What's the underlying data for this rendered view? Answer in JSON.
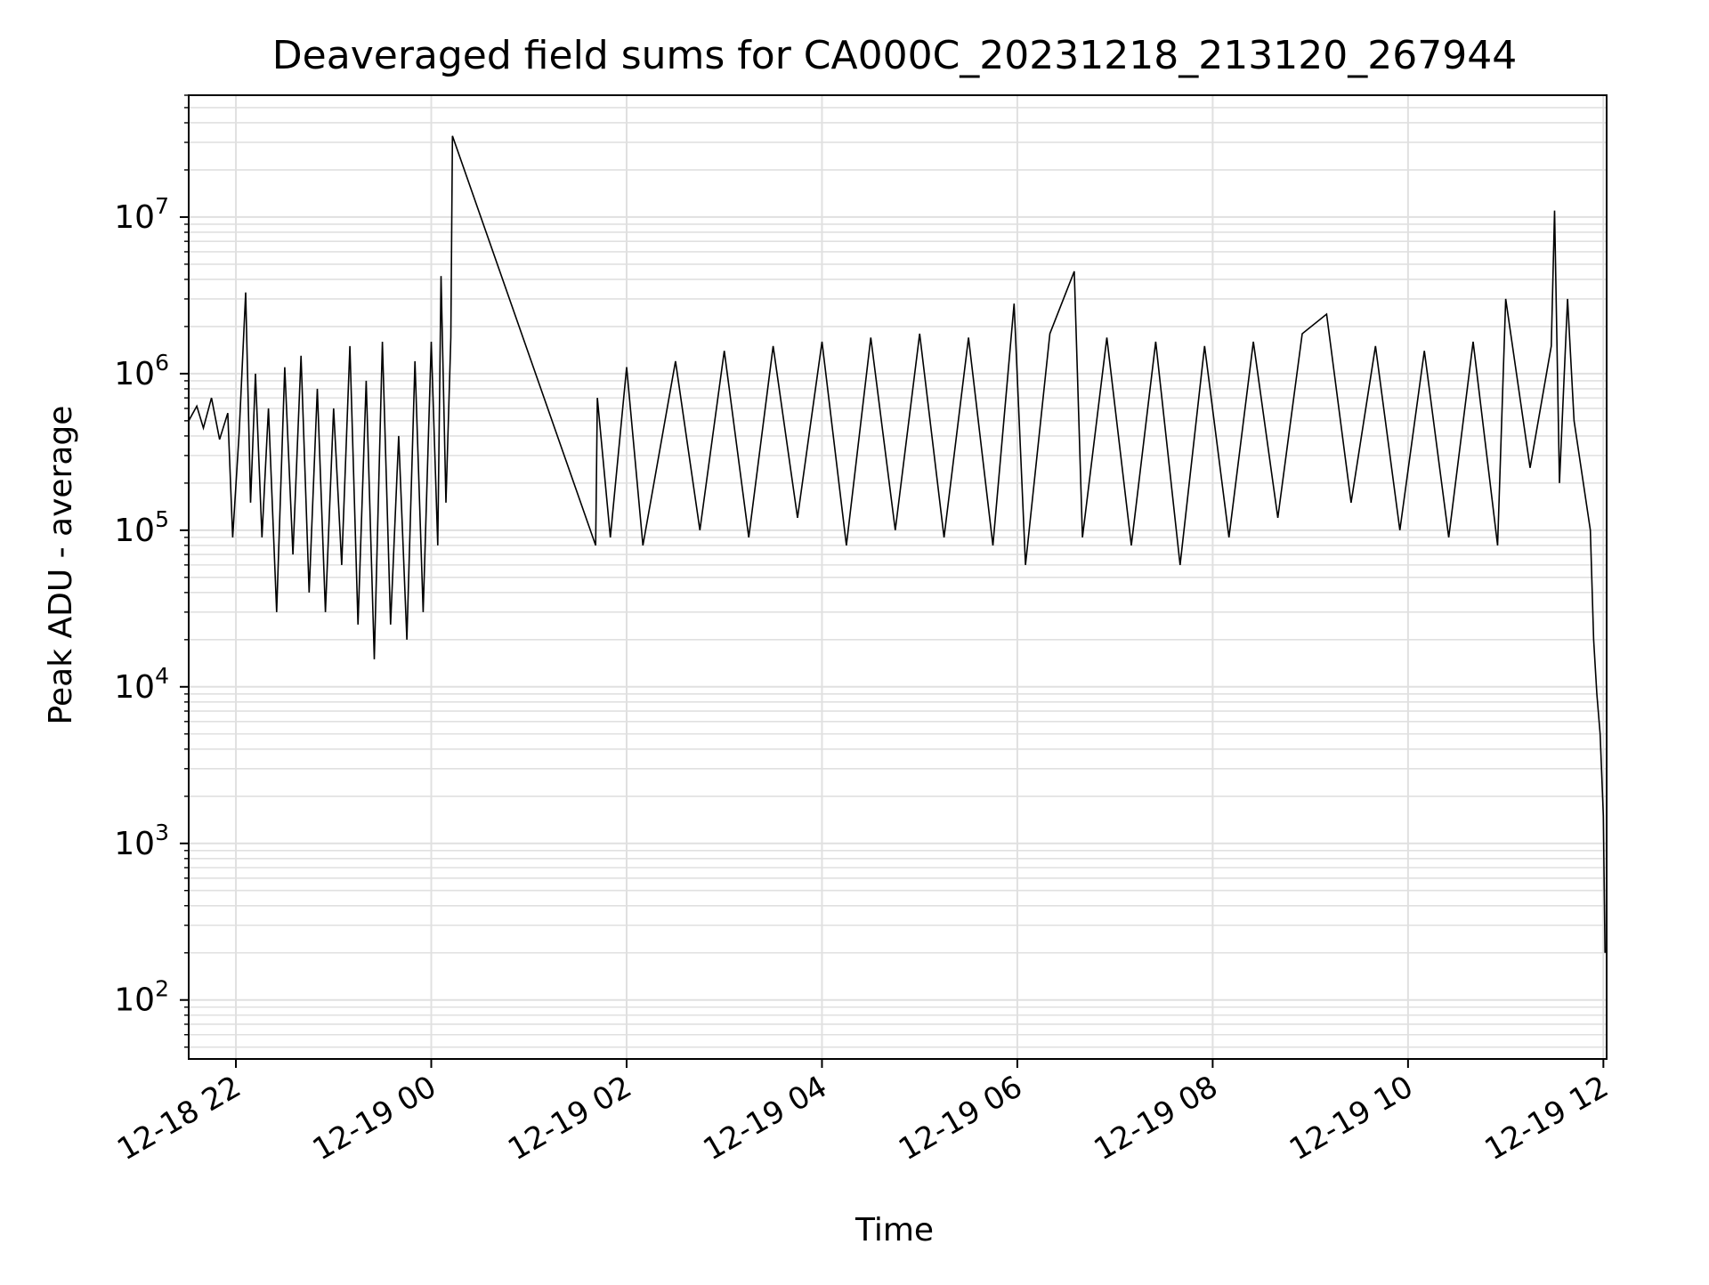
{
  "chart_data": {
    "type": "line",
    "title": "Deaveraged field sums for CA000C_20231218_213120_267944",
    "xlabel": "Time",
    "ylabel": "Peak ADU - average",
    "yscale": "log",
    "ylim": [
      42,
      60000000
    ],
    "xlim": [
      "2023-12-18 21:31",
      "2023-12-19 12:02"
    ],
    "x_ticks": [
      {
        "label": "12-18 22",
        "time": "2023-12-18 22:00"
      },
      {
        "label": "12-19 00",
        "time": "2023-12-19 00:00"
      },
      {
        "label": "12-19 02",
        "time": "2023-12-19 02:00"
      },
      {
        "label": "12-19 04",
        "time": "2023-12-19 04:00"
      },
      {
        "label": "12-19 06",
        "time": "2023-12-19 06:00"
      },
      {
        "label": "12-19 08",
        "time": "2023-12-19 08:00"
      },
      {
        "label": "12-19 10",
        "time": "2023-12-19 10:00"
      },
      {
        "label": "12-19 12",
        "time": "2023-12-19 12:00"
      }
    ],
    "y_ticks": [
      {
        "base": "10",
        "exp": "2",
        "value": 100
      },
      {
        "base": "10",
        "exp": "3",
        "value": 1000
      },
      {
        "base": "10",
        "exp": "4",
        "value": 10000
      },
      {
        "base": "10",
        "exp": "5",
        "value": 100000
      },
      {
        "base": "10",
        "exp": "6",
        "value": 1000000
      },
      {
        "base": "10",
        "exp": "7",
        "value": 10000000
      }
    ],
    "grid": "on (major and minor)",
    "line_color": "#000000",
    "grid_color": "#e0e0e0",
    "series": [
      {
        "points": [
          [
            "2023-12-18 21:31",
            500000
          ],
          [
            "2023-12-18 21:36",
            620000
          ],
          [
            "2023-12-18 21:40",
            450000
          ],
          [
            "2023-12-18 21:45",
            700000
          ],
          [
            "2023-12-18 21:50",
            380000
          ],
          [
            "2023-12-18 21:55",
            560000
          ],
          [
            "2023-12-18 21:58",
            90000
          ],
          [
            "2023-12-18 22:02",
            420000
          ],
          [
            "2023-12-18 22:06",
            3300000
          ],
          [
            "2023-12-18 22:09",
            150000
          ],
          [
            "2023-12-18 22:12",
            1000000
          ],
          [
            "2023-12-18 22:16",
            90000
          ],
          [
            "2023-12-18 22:20",
            600000
          ],
          [
            "2023-12-18 22:25",
            30000
          ],
          [
            "2023-12-18 22:30",
            1100000
          ],
          [
            "2023-12-18 22:35",
            70000
          ],
          [
            "2023-12-18 22:40",
            1300000
          ],
          [
            "2023-12-18 22:45",
            40000
          ],
          [
            "2023-12-18 22:50",
            800000
          ],
          [
            "2023-12-18 22:55",
            30000
          ],
          [
            "2023-12-18 23:00",
            600000
          ],
          [
            "2023-12-18 23:05",
            60000
          ],
          [
            "2023-12-18 23:10",
            1500000
          ],
          [
            "2023-12-18 23:15",
            25000
          ],
          [
            "2023-12-18 23:20",
            900000
          ],
          [
            "2023-12-18 23:25",
            15000
          ],
          [
            "2023-12-18 23:30",
            1600000
          ],
          [
            "2023-12-18 23:35",
            25000
          ],
          [
            "2023-12-18 23:40",
            400000
          ],
          [
            "2023-12-18 23:45",
            20000
          ],
          [
            "2023-12-18 23:50",
            1200000
          ],
          [
            "2023-12-18 23:55",
            30000
          ],
          [
            "2023-12-19 00:00",
            1600000
          ],
          [
            "2023-12-19 00:04",
            80000
          ],
          [
            "2023-12-19 00:06",
            4200000
          ],
          [
            "2023-12-19 00:09",
            150000
          ],
          [
            "2023-12-19 00:12",
            1700000
          ],
          [
            "2023-12-19 00:13",
            33000000
          ],
          [
            "2023-12-19 01:41",
            80000
          ],
          [
            "2023-12-19 01:42",
            700000
          ],
          [
            "2023-12-19 01:50",
            90000
          ],
          [
            "2023-12-19 02:00",
            1100000
          ],
          [
            "2023-12-19 02:10",
            80000
          ],
          [
            "2023-12-19 02:30",
            1200000
          ],
          [
            "2023-12-19 02:45",
            100000
          ],
          [
            "2023-12-19 03:00",
            1400000
          ],
          [
            "2023-12-19 03:15",
            90000
          ],
          [
            "2023-12-19 03:30",
            1500000
          ],
          [
            "2023-12-19 03:45",
            120000
          ],
          [
            "2023-12-19 04:00",
            1600000
          ],
          [
            "2023-12-19 04:15",
            80000
          ],
          [
            "2023-12-19 04:30",
            1700000
          ],
          [
            "2023-12-19 04:45",
            100000
          ],
          [
            "2023-12-19 05:00",
            1800000
          ],
          [
            "2023-12-19 05:15",
            90000
          ],
          [
            "2023-12-19 05:30",
            1700000
          ],
          [
            "2023-12-19 05:45",
            80000
          ],
          [
            "2023-12-19 05:58",
            2800000
          ],
          [
            "2023-12-19 06:05",
            60000
          ],
          [
            "2023-12-19 06:20",
            1800000
          ],
          [
            "2023-12-19 06:35",
            4500000
          ],
          [
            "2023-12-19 06:40",
            90000
          ],
          [
            "2023-12-19 06:55",
            1700000
          ],
          [
            "2023-12-19 07:10",
            80000
          ],
          [
            "2023-12-19 07:25",
            1600000
          ],
          [
            "2023-12-19 07:40",
            60000
          ],
          [
            "2023-12-19 07:55",
            1500000
          ],
          [
            "2023-12-19 08:10",
            90000
          ],
          [
            "2023-12-19 08:25",
            1600000
          ],
          [
            "2023-12-19 08:40",
            120000
          ],
          [
            "2023-12-19 08:55",
            1800000
          ],
          [
            "2023-12-19 09:10",
            2400000
          ],
          [
            "2023-12-19 09:25",
            150000
          ],
          [
            "2023-12-19 09:40",
            1500000
          ],
          [
            "2023-12-19 09:55",
            100000
          ],
          [
            "2023-12-19 10:10",
            1400000
          ],
          [
            "2023-12-19 10:25",
            90000
          ],
          [
            "2023-12-19 10:40",
            1600000
          ],
          [
            "2023-12-19 10:55",
            80000
          ],
          [
            "2023-12-19 11:00",
            3000000
          ],
          [
            "2023-12-19 11:15",
            250000
          ],
          [
            "2023-12-19 11:28",
            1500000
          ],
          [
            "2023-12-19 11:30",
            11000000
          ],
          [
            "2023-12-19 11:33",
            200000
          ],
          [
            "2023-12-19 11:38",
            3000000
          ],
          [
            "2023-12-19 11:42",
            500000
          ],
          [
            "2023-12-19 11:52",
            100000
          ],
          [
            "2023-12-19 11:54",
            20000
          ],
          [
            "2023-12-19 11:56",
            9000
          ],
          [
            "2023-12-19 11:58",
            5000
          ],
          [
            "2023-12-19 12:00",
            1500
          ],
          [
            "2023-12-19 12:01",
            200
          ]
        ]
      }
    ]
  }
}
